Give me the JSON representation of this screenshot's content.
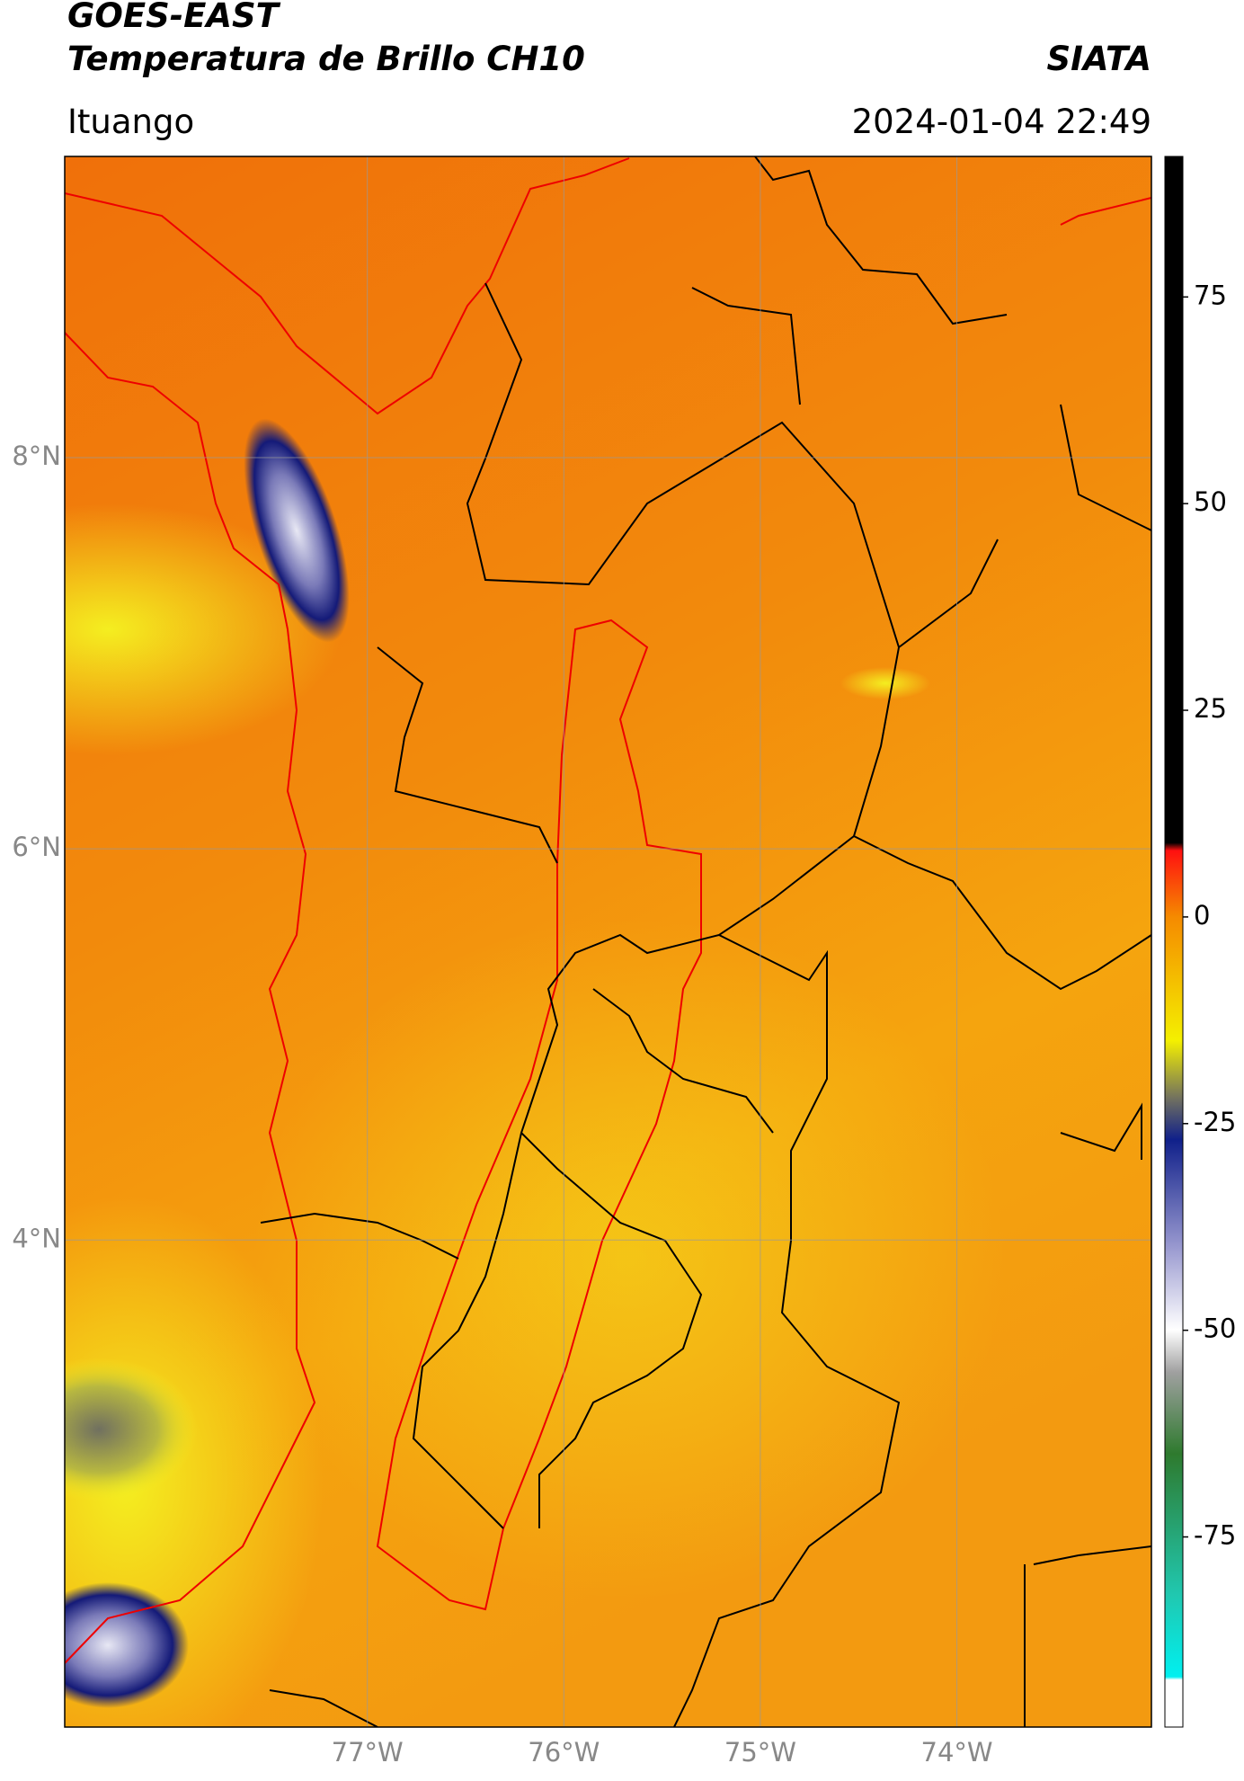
{
  "chart_data": {
    "type": "map",
    "title": "GOES-EAST",
    "subtitle": "Temperatura de Brillo CH10",
    "brand": "SIATA",
    "location": "Ituango",
    "datetime": "2024-01-04 22:49",
    "xlim": [
      -78.54,
      -73.01
    ],
    "ylim": [
      1.51,
      9.54
    ],
    "xticks": [
      {
        "value": -77,
        "label": "77°W"
      },
      {
        "value": -76,
        "label": "76°W"
      },
      {
        "value": -75,
        "label": "75°W"
      },
      {
        "value": -74,
        "label": "74°W"
      }
    ],
    "yticks": [
      {
        "value": 8,
        "label": "8°N"
      },
      {
        "value": 6,
        "label": "6°N"
      },
      {
        "value": 4,
        "label": "4°N"
      }
    ],
    "grid": true,
    "colorbar": {
      "lim": [
        -98,
        92
      ],
      "ticks": [
        75,
        50,
        25,
        0,
        -25,
        -50,
        -75
      ]
    }
  }
}
